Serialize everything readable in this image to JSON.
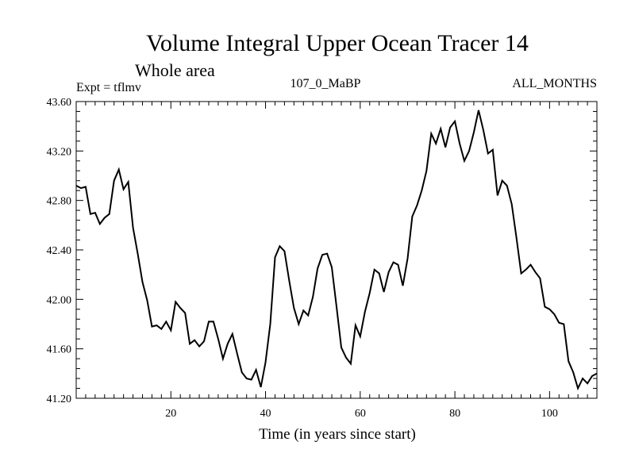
{
  "chart_data": {
    "type": "line",
    "title": "Volume Integral Upper Ocean Tracer 14",
    "subtitle": "Whole area",
    "expt_label": "Expt = tflmv",
    "run_label": "107_0_MaBP",
    "months_label": "ALL_MONTHS",
    "xlabel": "Time (in years since start)",
    "ylabel": "",
    "xlim": [
      0,
      110
    ],
    "ylim": [
      41.2,
      43.6
    ],
    "xticks": [
      20,
      40,
      60,
      80,
      100
    ],
    "xtick_labels": [
      "20",
      "40",
      "60",
      "80",
      "100"
    ],
    "yticks": [
      41.2,
      41.6,
      42.0,
      42.4,
      42.8,
      43.2,
      43.6
    ],
    "ytick_labels": [
      "41.20",
      "41.60",
      "42.00",
      "42.40",
      "42.80",
      "43.20",
      "43.60"
    ],
    "grid": false,
    "series": [
      {
        "name": "tracer14",
        "color": "#000000",
        "x": [
          0,
          1,
          2,
          3,
          4,
          5,
          6,
          7,
          8,
          9,
          10,
          11,
          12,
          13,
          14,
          15,
          16,
          17,
          18,
          19,
          20,
          21,
          22,
          23,
          24,
          25,
          26,
          27,
          28,
          29,
          30,
          31,
          32,
          33,
          34,
          35,
          36,
          37,
          38,
          39,
          40,
          41,
          42,
          43,
          44,
          45,
          46,
          47,
          48,
          49,
          50,
          51,
          52,
          53,
          54,
          55,
          56,
          57,
          58,
          59,
          60,
          61,
          62,
          63,
          64,
          65,
          66,
          67,
          68,
          69,
          70,
          71,
          72,
          73,
          74,
          75,
          76,
          77,
          78,
          79,
          80,
          81,
          82,
          83,
          84,
          85,
          86,
          87,
          88,
          89,
          90,
          91,
          92,
          93,
          94,
          95,
          96,
          97,
          98,
          99,
          100,
          101,
          102,
          103,
          104,
          105,
          106,
          107,
          108,
          109,
          110
        ],
        "values": [
          42.92,
          42.9,
          42.91,
          42.69,
          42.7,
          42.61,
          42.66,
          42.69,
          42.96,
          43.05,
          42.89,
          42.95,
          42.58,
          42.37,
          42.14,
          41.99,
          41.78,
          41.79,
          41.76,
          41.82,
          41.75,
          41.98,
          41.93,
          41.89,
          41.64,
          41.67,
          41.62,
          41.66,
          41.82,
          41.82,
          41.68,
          41.52,
          41.64,
          41.72,
          41.56,
          41.41,
          41.36,
          41.35,
          41.43,
          41.29,
          41.49,
          41.8,
          42.34,
          42.43,
          42.39,
          42.15,
          41.93,
          41.8,
          41.91,
          41.87,
          42.02,
          42.25,
          42.36,
          42.37,
          42.26,
          41.94,
          41.61,
          41.53,
          41.48,
          41.79,
          41.7,
          41.9,
          42.05,
          42.24,
          42.21,
          42.06,
          42.22,
          42.3,
          42.28,
          42.11,
          42.33,
          42.67,
          42.76,
          42.88,
          43.04,
          43.34,
          43.26,
          43.38,
          43.23,
          43.39,
          43.44,
          43.26,
          43.12,
          43.2,
          43.35,
          43.53,
          43.37,
          43.18,
          43.21,
          42.84,
          42.96,
          42.92,
          42.77,
          42.5,
          42.21,
          42.24,
          42.28,
          42.22,
          42.17,
          41.94,
          41.92,
          41.88,
          41.81,
          41.8,
          41.5,
          41.41,
          41.28,
          41.36,
          41.32,
          41.38,
          41.4
        ]
      }
    ]
  }
}
